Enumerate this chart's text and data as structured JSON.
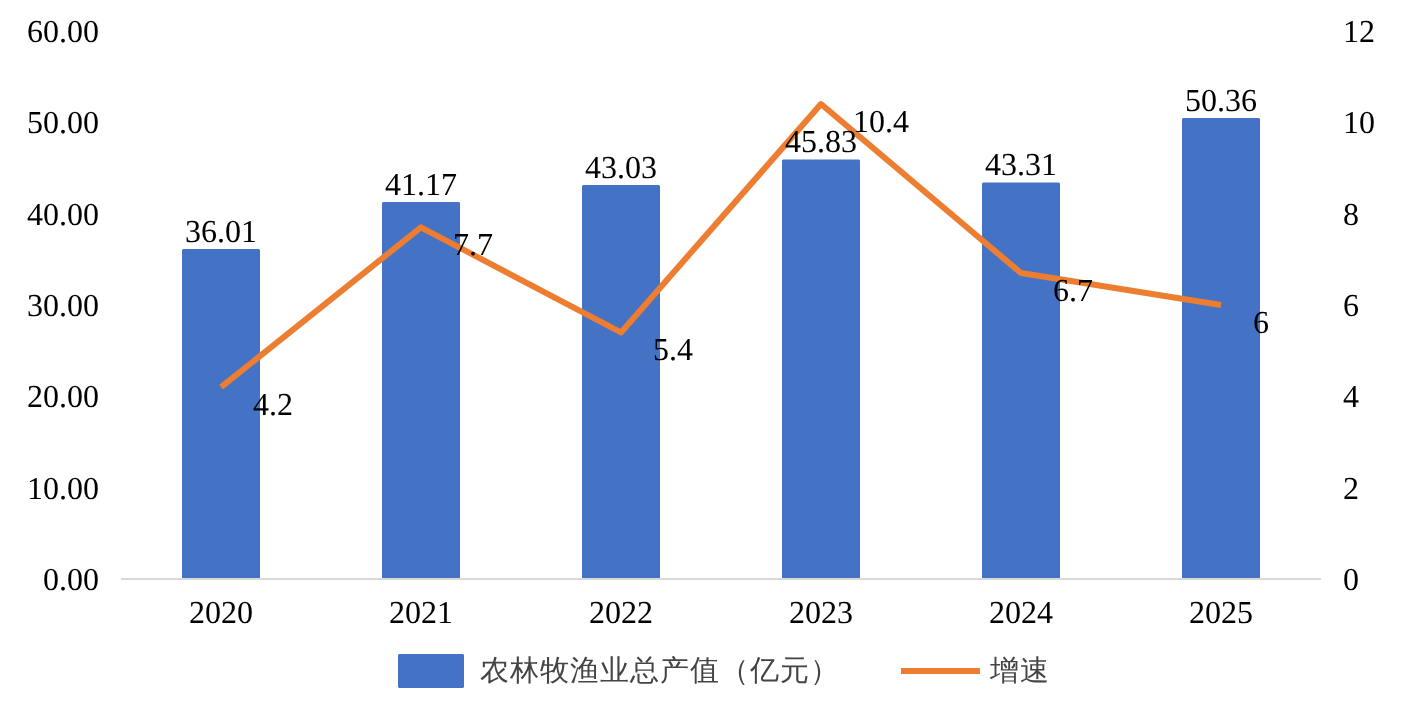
{
  "chart_data": {
    "type": "bar",
    "categories": [
      "2020",
      "2021",
      "2022",
      "2023",
      "2024",
      "2025"
    ],
    "series": [
      {
        "name": "农林牧渔业总产值（亿元）",
        "color": "#4472c4",
        "values": [
          36.01,
          41.17,
          43.03,
          45.83,
          43.31,
          50.36
        ]
      },
      {
        "name": "增速",
        "type": "line",
        "axis": "y2",
        "color": "#ed7d31",
        "values": [
          4.2,
          7.7,
          5.4,
          10.4,
          6.7,
          6
        ]
      }
    ],
    "ylim": [
      0,
      60
    ],
    "yticks": [
      {
        "value": 0,
        "label": "0.00"
      },
      {
        "value": 10,
        "label": "10.00"
      },
      {
        "value": 20,
        "label": "20.00"
      },
      {
        "value": 30,
        "label": "30.00"
      },
      {
        "value": 40,
        "label": "40.00"
      },
      {
        "value": 50,
        "label": "50.00"
      },
      {
        "value": 60,
        "label": "60.00"
      }
    ],
    "y2lim": [
      0,
      12
    ],
    "y2ticks": [
      0,
      2,
      4,
      6,
      8,
      10,
      12
    ],
    "data_labels": true,
    "legend": "bottom",
    "grid": false,
    "marker": "none",
    "line_style": "solid"
  }
}
